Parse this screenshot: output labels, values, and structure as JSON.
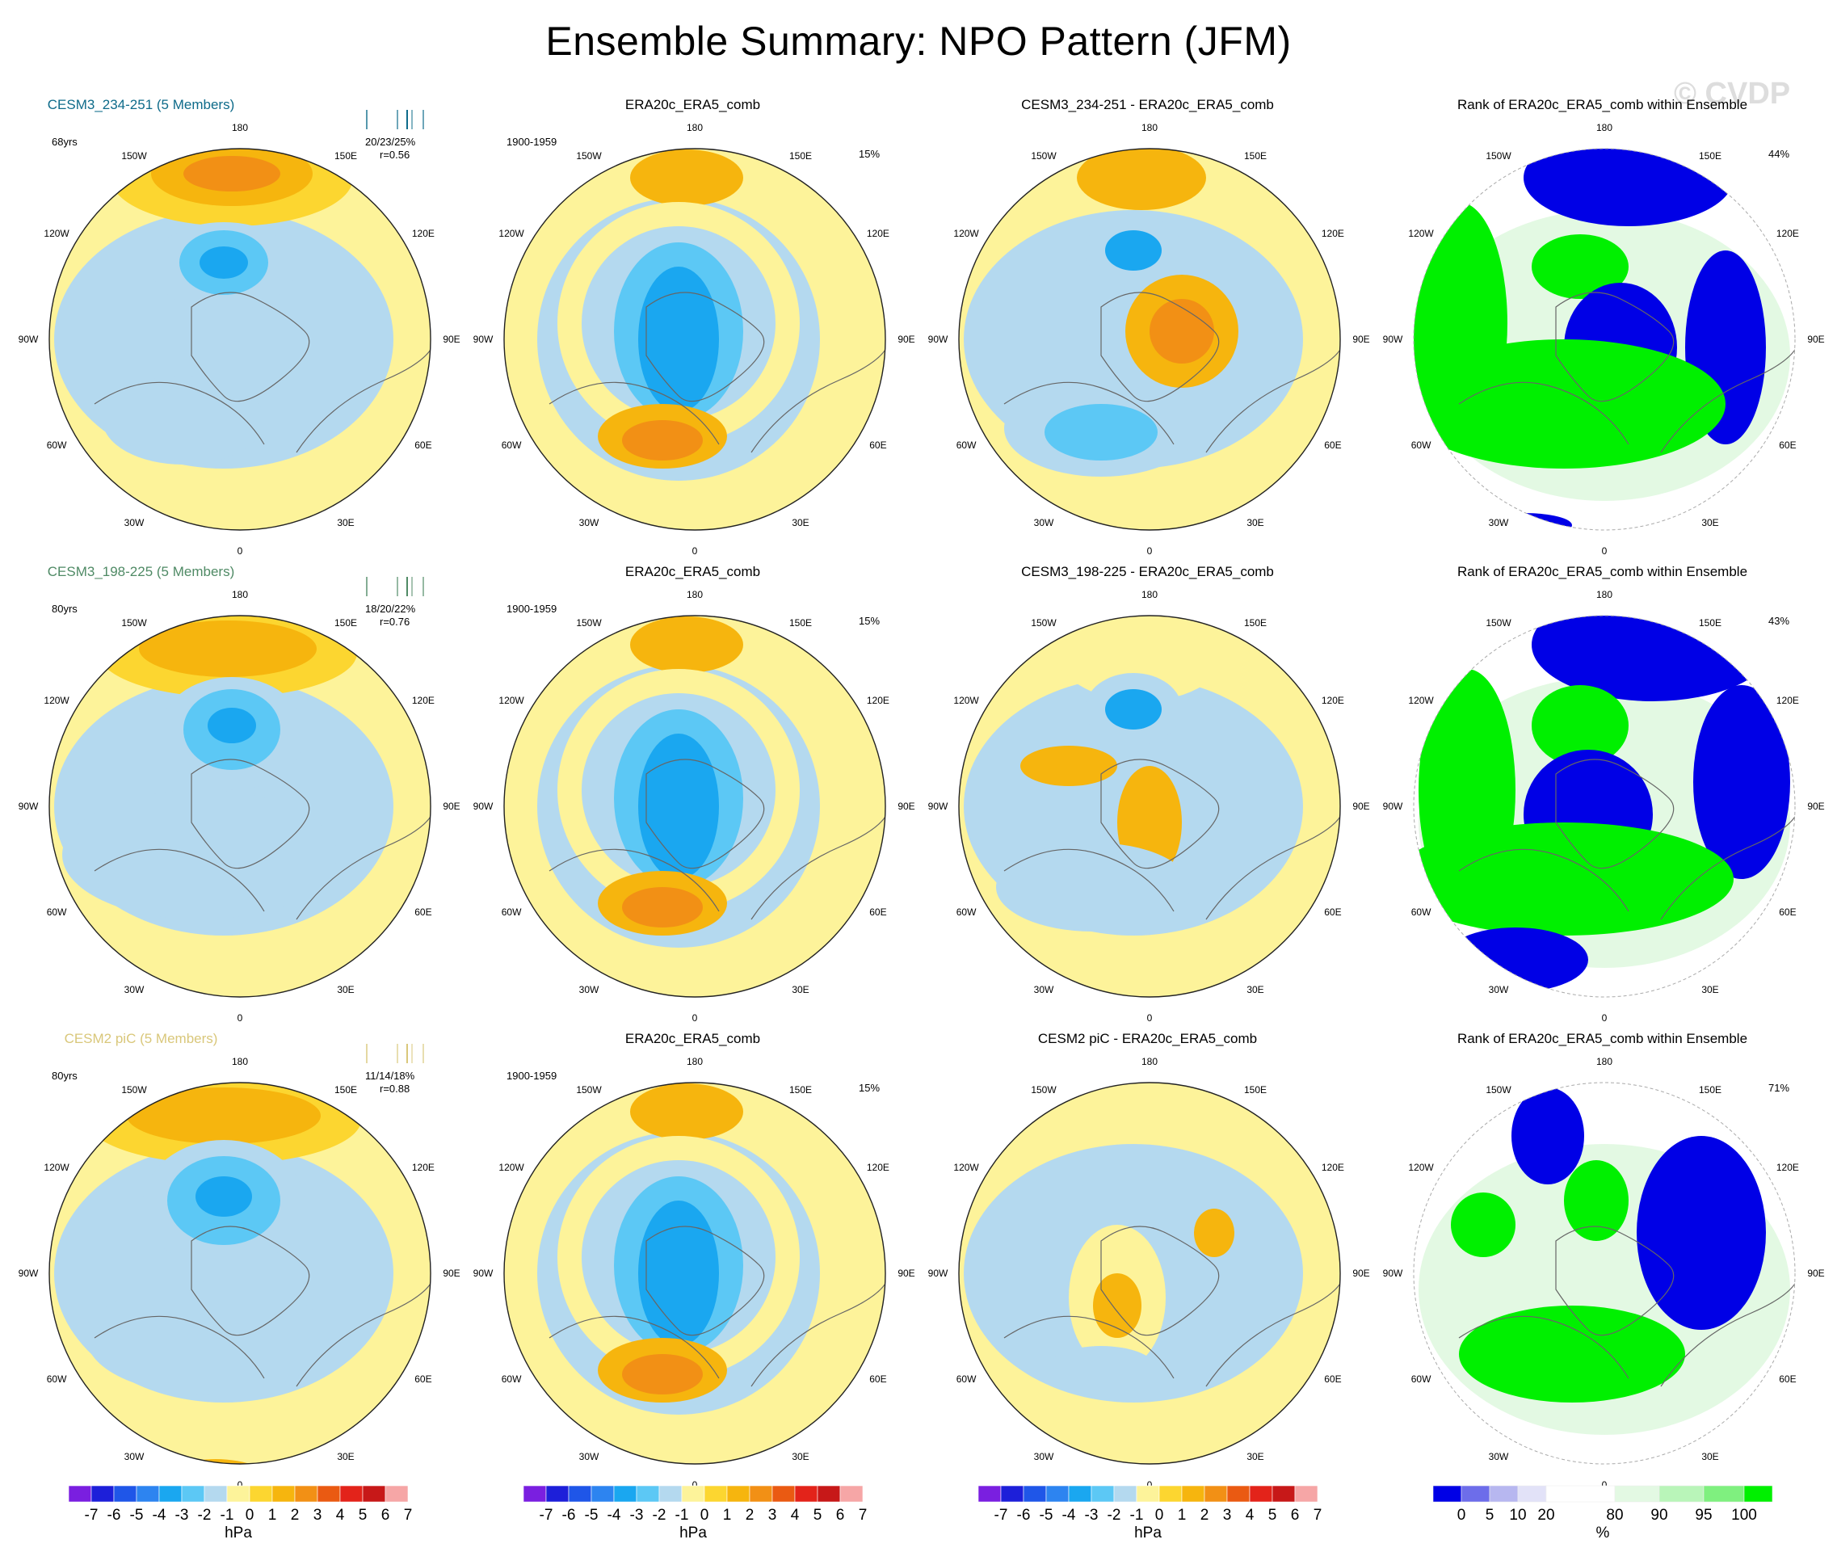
{
  "page": {
    "title": "Ensemble Summary: NPO Pattern (JFM)",
    "watermark": "© CVDP"
  },
  "colors": {
    "ensemble_titles": [
      "#0e6b8a",
      "#4f8a65",
      "#d9c77a"
    ],
    "palette_hpa": [
      "#7a1fe0",
      "#1d1fd9",
      "#1f56e8",
      "#2d84f0",
      "#1aa7f0",
      "#5cc8f5",
      "#b4d9ef",
      "#fdf39a",
      "#fcd630",
      "#f6b50e",
      "#f29015",
      "#ea5a12",
      "#e3231a",
      "#c71818",
      "#f6a6a6"
    ],
    "palette_rank": [
      "#0000e6",
      "#6d6dea",
      "#b7b7f0",
      "#e2e2f8",
      "#ffffff",
      "#e3f9e3",
      "#b9f5b9",
      "#7ff07f",
      "#00f000"
    ]
  },
  "rows": [
    {
      "ensemble_title": "CESM3_234-251 (5 Members)",
      "years": "68yrs",
      "stats": "20/23/25%",
      "corr": "r=0.56",
      "obs_title": "ERA20c_ERA5_comb",
      "obs_period": "1900-1959",
      "obs_pct": "15%",
      "diff_title": "CESM3_234-251 - ERA20c_ERA5_comb",
      "rank_title": "Rank of ERA20c_ERA5_comb within Ensemble",
      "rank_pct": "44%"
    },
    {
      "ensemble_title": "CESM3_198-225 (5 Members)",
      "years": "80yrs",
      "stats": "18/20/22%",
      "corr": "r=0.76",
      "obs_title": "ERA20c_ERA5_comb",
      "obs_period": "1900-1959",
      "obs_pct": "15%",
      "diff_title": "CESM3_198-225 - ERA20c_ERA5_comb",
      "rank_title": "Rank of ERA20c_ERA5_comb within Ensemble",
      "rank_pct": "43%"
    },
    {
      "ensemble_title": "CESM2 piC (5 Members)",
      "years": "80yrs",
      "stats": "11/14/18%",
      "corr": "r=0.88",
      "obs_title": "ERA20c_ERA5_comb",
      "obs_period": "1900-1959",
      "obs_pct": "15%",
      "diff_title": "CESM2 piC - ERA20c_ERA5_comb",
      "rank_title": "Rank of ERA20c_ERA5_comb within Ensemble",
      "rank_pct": "71%"
    }
  ],
  "longitude_labels": [
    "180",
    "150E",
    "120E",
    "90E",
    "60E",
    "30E",
    "0",
    "30W",
    "60W",
    "90W",
    "120W",
    "150W"
  ],
  "colorbars": {
    "hpa_ticks": [
      "-7",
      "-6",
      "-5",
      "-4",
      "-3",
      "-2",
      "-1",
      "0",
      "1",
      "2",
      "3",
      "4",
      "5",
      "6",
      "7"
    ],
    "hpa_unit": "hPa",
    "rank_ticks": [
      "0",
      "5",
      "10",
      "20",
      "80",
      "90",
      "95",
      "100"
    ],
    "rank_unit": "%"
  },
  "chart_data": {
    "type": "heatmap",
    "title": "Ensemble Summary: NPO Pattern (JFM)",
    "projection": "north polar stereographic",
    "hpa_levels": [
      -7,
      -6,
      -5,
      -4,
      -3,
      -2,
      -1,
      0,
      1,
      2,
      3,
      4,
      5,
      6,
      7
    ],
    "rank_levels": [
      0,
      5,
      10,
      20,
      80,
      90,
      95,
      100
    ],
    "panels_per_row": [
      "ensemble mean NPO pattern",
      "ERA20c_ERA5_comb NPO pattern",
      "ensemble minus observations",
      "rank of observations within ensemble"
    ]
  }
}
